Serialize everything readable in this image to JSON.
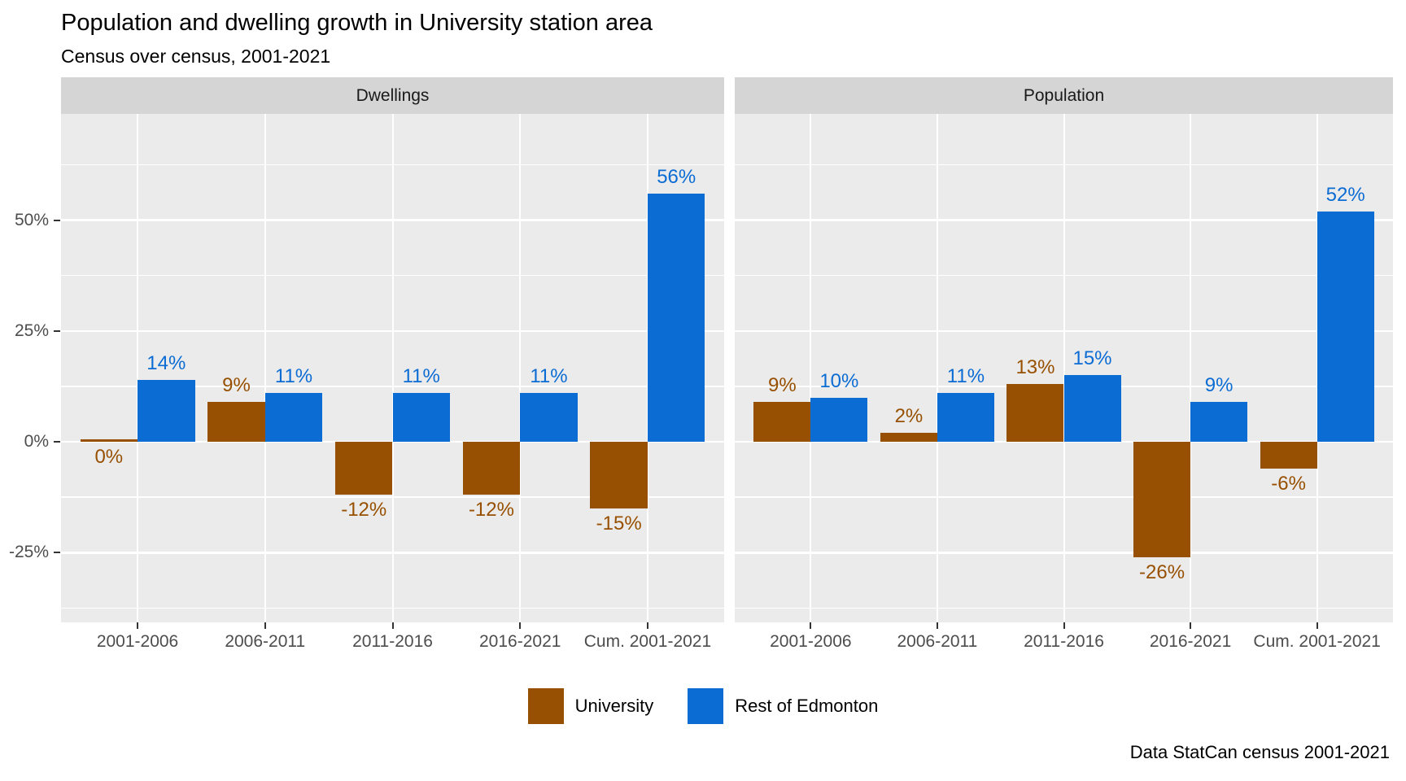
{
  "title": "Population and dwelling growth in University station area",
  "subtitle": "Census over census, 2001-2021",
  "caption": "Data StatCan census 2001-2021",
  "colors": {
    "university": "#975001",
    "rest_of_edmonton": "#0B6CD4",
    "panel_background": "#EBEBEB",
    "strip_background": "#D5D5D5",
    "gridline": "#FFFFFF",
    "axis_text": "#4D4D4D",
    "tick_mark": "#333333"
  },
  "legend": {
    "items": [
      {
        "label": "University",
        "color": "#975001"
      },
      {
        "label": "Rest of Edmonton",
        "color": "#0B6CD4"
      }
    ]
  },
  "chart_data": {
    "type": "bar",
    "title": "Population and dwelling growth in University station area",
    "subtitle": "Census over census, 2001-2021",
    "caption": "Data StatCan census 2001-2021",
    "categories": [
      "2001-2006",
      "2006-2011",
      "2011-2016",
      "2016-2021",
      "Cum. 2001-2021"
    ],
    "facets": [
      {
        "label": "Dwellings",
        "series": [
          {
            "name": "University",
            "color": "#975001",
            "values": [
              0,
              9,
              -12,
              -12,
              -15
            ],
            "labels": [
              "0%",
              "9%",
              "-12%",
              "-12%",
              "-15%"
            ]
          },
          {
            "name": "Rest of Edmonton",
            "color": "#0B6CD4",
            "values": [
              14,
              11,
              11,
              11,
              56
            ],
            "labels": [
              "14%",
              "11%",
              "11%",
              "11%",
              "56%"
            ]
          }
        ]
      },
      {
        "label": "Population",
        "series": [
          {
            "name": "University",
            "color": "#975001",
            "values": [
              9,
              2,
              13,
              -26,
              -6
            ],
            "labels": [
              "9%",
              "2%",
              "13%",
              "-26%",
              "-6%"
            ]
          },
          {
            "name": "Rest of Edmonton",
            "color": "#0B6CD4",
            "values": [
              10,
              11,
              15,
              9,
              52
            ],
            "labels": [
              "10%",
              "11%",
              "15%",
              "9%",
              "52%"
            ]
          }
        ]
      }
    ],
    "y_axis": {
      "tick_values": [
        -25,
        0,
        25,
        50
      ],
      "tick_labels": [
        "-25%",
        "0%",
        "25%",
        "50%"
      ],
      "minor_tick_values": [
        -37.5,
        -12.5,
        12.5,
        37.5,
        62.5
      ],
      "ylim": [
        -40.7,
        73.9
      ]
    },
    "grid": true,
    "legend_position": "bottom",
    "bar_layout": "dodged"
  }
}
